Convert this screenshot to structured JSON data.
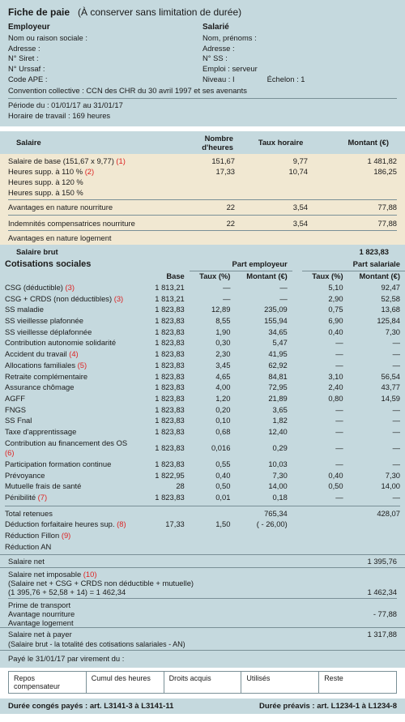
{
  "header": {
    "title_plain": "Fiche de paie",
    "title_note": "(À conserver sans limitation de durée)",
    "employer_label": "Employeur",
    "employee_label": "Salarié",
    "employer_fields": [
      "Nom ou raison sociale :",
      "Adresse :",
      "N° Siret :",
      "N° Urssaf :",
      "Code APE :"
    ],
    "employee_fields": [
      "Nom, prénoms :",
      "Adresse :",
      "N° SS :",
      "Emploi : serveur"
    ],
    "level_label": "Niveau : I",
    "echelon_label": "Échelon : 1",
    "ccn": "Convention collective : CCN des CHR du 30 avril 1997 et ses avenants",
    "period": "Période du : 01/01/17 au 31/01/17",
    "hours": "Horaire de travail : 169 heures"
  },
  "salary": {
    "section": "Salaire",
    "cols": [
      "Nombre d'heures",
      "Taux horaire",
      "Montant (€)"
    ],
    "rows": [
      {
        "l": "Salaire de base (151,67 x 9,77) ",
        "note": "(1)",
        "h": "151,67",
        "t": "9,77",
        "m": "1 481,82"
      },
      {
        "l": "Heures supp. à 110 %  ",
        "note": "(2)",
        "h": "17,33",
        "t": "10,74",
        "m": "186,25"
      },
      {
        "l": "Heures supp. à 120 %",
        "note": "",
        "h": "",
        "t": "",
        "m": ""
      },
      {
        "l": "Heures supp. à 150 %",
        "note": "",
        "h": "",
        "t": "",
        "m": ""
      }
    ],
    "adv": [
      {
        "l": "Avantages en nature nourriture",
        "h": "22",
        "t": "3,54",
        "m": "77,88"
      },
      {
        "l": "Indemnités compensatrices nourriture",
        "h": "22",
        "t": "3,54",
        "m": "77,88"
      }
    ],
    "logement": "Avantages en nature logement",
    "brut_label": "Salaire brut",
    "brut": "1 823,83"
  },
  "cot": {
    "section": "Cotisations sociales",
    "group_emp": "Part employeur",
    "group_sal": "Part salariale",
    "cols": [
      "Base",
      "Taux (%)",
      "Montant (€)",
      "Taux (%)",
      "Montant (€)"
    ],
    "rows": [
      {
        "l": "CSG (déductible) ",
        "n": "(3)",
        "b": "1 813,21",
        "et": "—",
        "em": "—",
        "st": "5,10",
        "sm": "92,47"
      },
      {
        "l": "CSG + CRDS (non déductibles) ",
        "n": "(3)",
        "b": "1 813,21",
        "et": "—",
        "em": "—",
        "st": "2,90",
        "sm": "52,58"
      },
      {
        "l": "SS maladie",
        "n": "",
        "b": "1 823,83",
        "et": "12,89",
        "em": "235,09",
        "st": "0,75",
        "sm": "13,68"
      },
      {
        "l": "SS vieillesse plafonnée",
        "n": "",
        "b": "1 823,83",
        "et": "8,55",
        "em": "155,94",
        "st": "6,90",
        "sm": "125,84"
      },
      {
        "l": "SS vieillesse déplafonnée",
        "n": "",
        "b": "1 823,83",
        "et": "1,90",
        "em": "34,65",
        "st": "0,40",
        "sm": "7,30"
      },
      {
        "l": "Contribution autonomie solidarité",
        "n": "",
        "b": "1 823,83",
        "et": "0,30",
        "em": "5,47",
        "st": "—",
        "sm": "—"
      },
      {
        "l": "Accident du travail ",
        "n": "(4)",
        "b": "1 823,83",
        "et": "2,30",
        "em": "41,95",
        "st": "—",
        "sm": "—"
      },
      {
        "l": "Allocations familiales ",
        "n": "(5)",
        "b": "1 823,83",
        "et": "3,45",
        "em": "62,92",
        "st": "—",
        "sm": "—"
      },
      {
        "l": "Retraite complémentaire",
        "n": "",
        "b": "1 823,83",
        "et": "4,65",
        "em": "84,81",
        "st": "3,10",
        "sm": "56,54"
      },
      {
        "l": "Assurance chômage",
        "n": "",
        "b": "1 823,83",
        "et": "4,00",
        "em": "72,95",
        "st": "2,40",
        "sm": "43,77"
      },
      {
        "l": "AGFF",
        "n": "",
        "b": "1 823,83",
        "et": "1,20",
        "em": "21,89",
        "st": "0,80",
        "sm": "14,59"
      },
      {
        "l": "FNGS",
        "n": "",
        "b": "1 823,83",
        "et": "0,20",
        "em": "3,65",
        "st": "—",
        "sm": "—"
      },
      {
        "l": "SS Fnal",
        "n": "",
        "b": "1 823,83",
        "et": "0,10",
        "em": "1,82",
        "st": "—",
        "sm": "—"
      },
      {
        "l": "Taxe d'apprentissage",
        "n": "",
        "b": "1 823,83",
        "et": "0,68",
        "em": "12,40",
        "st": "—",
        "sm": "—"
      },
      {
        "l": "Contribution au financement des OS ",
        "n": "(6)",
        "b": "1 823,83",
        "et": "0,016",
        "em": "0,29",
        "st": "—",
        "sm": "—"
      },
      {
        "l": "Participation formation continue",
        "n": "",
        "b": "1 823,83",
        "et": "0,55",
        "em": "10,03",
        "st": "—",
        "sm": "—"
      },
      {
        "l": "Prévoyance",
        "n": "",
        "b": "1 822,95",
        "et": "0,40",
        "em": "7,30",
        "st": "0,40",
        "sm": "7,30"
      },
      {
        "l": "Mutuelle frais de santé",
        "n": "",
        "b": "28",
        "et": "0,50",
        "em": "14,00",
        "st": "0,50",
        "sm": "14,00"
      },
      {
        "l": "Pénibilité ",
        "n": "(7)",
        "b": "1 823,83",
        "et": "0,01",
        "em": "0,18",
        "st": "—",
        "sm": "—"
      }
    ],
    "total_label": "Total retenues",
    "total_emp": "765,34",
    "total_sal": "428,07",
    "deduc": [
      {
        "l": "Déduction forfaitaire heures sup. ",
        "n": "(8)",
        "b": "17,33",
        "et": "1,50",
        "em": "( - 26,00)"
      },
      {
        "l": "Réduction Fillon ",
        "n": "(9)",
        "b": "",
        "et": "",
        "em": ""
      },
      {
        "l": "Réduction AN",
        "n": "",
        "b": "",
        "et": "",
        "em": ""
      }
    ]
  },
  "net": {
    "net_label": "Salaire net",
    "net": "1 395,76",
    "imp_l1": "Salaire net imposable ",
    "imp_n": "(10)",
    "imp_l2": "(Salaire net + CSG + CRDS non déductible + mutuelle)",
    "imp_l3": "(1 395,76 + 52,58 + 14) = 1 462,34",
    "imp_val": "1 462,34",
    "rows": [
      "Prime de transport",
      "Avantage nourriture",
      "Avantage logement"
    ],
    "av_nour": "- 77,88",
    "pay_label": "Salaire net à payer",
    "pay": "1 317,88",
    "pay_sub": "(Salaire brut - la totalité des cotisations salariales - AN)",
    "payline": "Payé le 31/01/17 par virement du :"
  },
  "boxes": [
    "Repos compensateur",
    "Cumul des heures",
    "Droits acquis",
    "Utilisés",
    "Reste"
  ],
  "footer": {
    "left": "Durée congés payés : art. L3141-3 à L3141-11",
    "right": "Durée préavis : art. L1234-1 à L1234-8"
  }
}
